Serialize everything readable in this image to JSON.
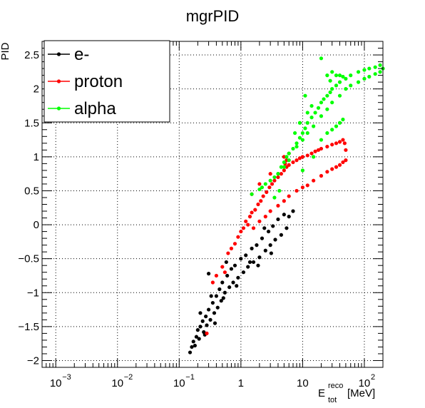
{
  "chart_data": {
    "type": "scatter",
    "title": "mgrPID",
    "ylabel": "PID",
    "xlabel": {
      "base": "E",
      "sup": "reco",
      "sub": "tot",
      "unit": "[MeV]"
    },
    "xscale": "log",
    "xlim": [
      0.0006,
      200
    ],
    "ylim": [
      -2.1,
      2.7
    ],
    "grid": true,
    "legend_position": "top-left",
    "x_ticks": [
      {
        "value": 0.001,
        "base": "10",
        "exp": "−3"
      },
      {
        "value": 0.01,
        "base": "10",
        "exp": "−2"
      },
      {
        "value": 0.1,
        "base": "10",
        "exp": "−1"
      },
      {
        "value": 1,
        "base": "1",
        "exp": ""
      },
      {
        "value": 10,
        "base": "10",
        "exp": ""
      },
      {
        "value": 100,
        "base": "10",
        "exp": "2"
      }
    ],
    "y_ticks": [
      {
        "value": -2,
        "label": "−2"
      },
      {
        "value": -1.5,
        "label": "−1.5"
      },
      {
        "value": -1,
        "label": "−1"
      },
      {
        "value": -0.5,
        "label": "−0.5"
      },
      {
        "value": 0,
        "label": "0"
      },
      {
        "value": 0.5,
        "label": "0.5"
      },
      {
        "value": 1,
        "label": "1"
      },
      {
        "value": 1.5,
        "label": "1.5"
      },
      {
        "value": 2,
        "label": "2"
      },
      {
        "value": 2.5,
        "label": "2.5"
      }
    ],
    "series": [
      {
        "name": "e-",
        "color": "#000000",
        "points": [
          [
            0.15,
            -1.88
          ],
          [
            0.16,
            -1.8
          ],
          [
            0.17,
            -1.72
          ],
          [
            0.18,
            -1.78
          ],
          [
            0.19,
            -1.65
          ],
          [
            0.2,
            -1.55
          ],
          [
            0.21,
            -1.68
          ],
          [
            0.22,
            -1.5
          ],
          [
            0.24,
            -1.42
          ],
          [
            0.25,
            -1.58
          ],
          [
            0.27,
            -1.35
          ],
          [
            0.28,
            -1.48
          ],
          [
            0.3,
            -1.25
          ],
          [
            0.32,
            -1.4
          ],
          [
            0.35,
            -1.15
          ],
          [
            0.37,
            -1.3
          ],
          [
            0.4,
            -1.05
          ],
          [
            0.42,
            -1.22
          ],
          [
            0.45,
            -0.95
          ],
          [
            0.48,
            -1.12
          ],
          [
            0.5,
            -0.85
          ],
          [
            0.55,
            -1.0
          ],
          [
            0.6,
            -0.75
          ],
          [
            0.65,
            -0.92
          ],
          [
            0.7,
            -0.65
          ],
          [
            0.75,
            -0.85
          ],
          [
            0.8,
            -0.6
          ],
          [
            0.9,
            -0.78
          ],
          [
            1.0,
            -0.5
          ],
          [
            1.1,
            -0.7
          ],
          [
            1.2,
            -0.45
          ],
          [
            1.3,
            -0.62
          ],
          [
            1.5,
            -0.35
          ],
          [
            1.6,
            -0.55
          ],
          [
            1.8,
            -0.3
          ],
          [
            2.0,
            -0.48
          ],
          [
            2.2,
            -0.2
          ],
          [
            2.5,
            -0.38
          ],
          [
            2.8,
            -0.1
          ],
          [
            3.0,
            -0.3
          ],
          [
            3.3,
            -0.02
          ],
          [
            3.6,
            -0.22
          ],
          [
            4.0,
            0.08
          ],
          [
            4.5,
            -0.15
          ],
          [
            5.0,
            0.15
          ],
          [
            5.5,
            -0.05
          ],
          [
            6.0,
            0.12
          ],
          [
            7.0,
            0.2
          ],
          [
            0.26,
            -1.62
          ],
          [
            0.33,
            -1.05
          ],
          [
            0.38,
            -1.45
          ],
          [
            0.52,
            -1.08
          ],
          [
            0.58,
            -0.55
          ],
          [
            0.85,
            -0.9
          ],
          [
            1.4,
            -0.55
          ],
          [
            1.9,
            -0.6
          ],
          [
            2.4,
            -0.05
          ],
          [
            3.1,
            -0.42
          ],
          [
            0.3,
            -0.72
          ],
          [
            0.22,
            -1.3
          ]
        ]
      },
      {
        "name": "proton",
        "color": "#ff0000",
        "points": [
          [
            0.28,
            -1.6
          ],
          [
            0.5,
            -0.62
          ],
          [
            0.55,
            -0.7
          ],
          [
            0.62,
            -0.42
          ],
          [
            0.7,
            -0.35
          ],
          [
            0.8,
            -0.28
          ],
          [
            0.9,
            -0.18
          ],
          [
            1.0,
            -0.1
          ],
          [
            1.1,
            -0.05
          ],
          [
            1.2,
            0.05
          ],
          [
            1.3,
            0.0
          ],
          [
            1.4,
            0.12
          ],
          [
            1.5,
            0.18
          ],
          [
            1.7,
            0.22
          ],
          [
            1.9,
            0.3
          ],
          [
            2.1,
            0.35
          ],
          [
            2.3,
            0.42
          ],
          [
            2.6,
            0.48
          ],
          [
            2.9,
            0.55
          ],
          [
            3.2,
            0.6
          ],
          [
            3.5,
            0.65
          ],
          [
            4.0,
            0.7
          ],
          [
            4.5,
            0.75
          ],
          [
            5.0,
            0.8
          ],
          [
            5.5,
            0.85
          ],
          [
            6.0,
            0.88
          ],
          [
            7.0,
            0.92
          ],
          [
            8.0,
            0.95
          ],
          [
            9.0,
            0.98
          ],
          [
            10.0,
            1.0
          ],
          [
            12.0,
            1.02
          ],
          [
            14.0,
            1.05
          ],
          [
            16.0,
            1.08
          ],
          [
            18.0,
            1.1
          ],
          [
            20.0,
            1.12
          ],
          [
            25.0,
            1.15
          ],
          [
            30.0,
            1.18
          ],
          [
            35.0,
            1.2
          ],
          [
            40.0,
            1.22
          ],
          [
            45.0,
            1.25
          ],
          [
            48.0,
            1.2
          ],
          [
            50.0,
            1.1
          ],
          [
            50.0,
            0.95
          ],
          [
            45.0,
            0.92
          ],
          [
            40.0,
            0.88
          ],
          [
            35.0,
            0.85
          ],
          [
            30.0,
            0.82
          ],
          [
            25.0,
            0.78
          ],
          [
            20.0,
            0.72
          ],
          [
            15.0,
            0.65
          ],
          [
            12.0,
            0.58
          ],
          [
            10.0,
            0.55
          ],
          [
            8.0,
            0.5
          ],
          [
            6.0,
            0.42
          ],
          [
            5.0,
            0.35
          ],
          [
            4.0,
            0.28
          ],
          [
            3.0,
            0.2
          ],
          [
            2.5,
            0.12
          ],
          [
            2.0,
            0.05
          ],
          [
            1.6,
            -0.05
          ],
          [
            5.0,
            1.0
          ],
          [
            5.5,
            0.95
          ],
          [
            6.0,
            1.05
          ],
          [
            5.2,
            0.9
          ],
          [
            0.4,
            -0.75
          ],
          [
            0.35,
            -0.85
          ],
          [
            2.0,
            0.6
          ],
          [
            3.0,
            0.75
          ],
          [
            1.5,
            0.45
          ]
        ]
      },
      {
        "name": "alpha",
        "color": "#00ff00",
        "points": [
          [
            2.5,
            0.6
          ],
          [
            3.0,
            0.65
          ],
          [
            3.5,
            0.7
          ],
          [
            4.0,
            0.75
          ],
          [
            4.5,
            0.85
          ],
          [
            5.0,
            0.92
          ],
          [
            5.5,
            1.0
          ],
          [
            6.0,
            1.05
          ],
          [
            7.0,
            1.12
          ],
          [
            8.0,
            1.2
          ],
          [
            9.0,
            1.28
          ],
          [
            10.0,
            1.35
          ],
          [
            11.0,
            1.42
          ],
          [
            12.0,
            1.5
          ],
          [
            14.0,
            1.58
          ],
          [
            16.0,
            1.65
          ],
          [
            18.0,
            1.72
          ],
          [
            20.0,
            1.8
          ],
          [
            22.0,
            1.85
          ],
          [
            25.0,
            1.9
          ],
          [
            28.0,
            1.95
          ],
          [
            30.0,
            2.0
          ],
          [
            35.0,
            2.05
          ],
          [
            40.0,
            2.1
          ],
          [
            50.0,
            2.15
          ],
          [
            60.0,
            2.2
          ],
          [
            80.0,
            2.25
          ],
          [
            100.0,
            2.28
          ],
          [
            120.0,
            2.3
          ],
          [
            150.0,
            2.32
          ],
          [
            180.0,
            2.35
          ],
          [
            200.0,
            2.3
          ],
          [
            180.0,
            2.25
          ],
          [
            150.0,
            2.22
          ],
          [
            120.0,
            2.18
          ],
          [
            100.0,
            2.15
          ],
          [
            80.0,
            2.1
          ],
          [
            60.0,
            2.05
          ],
          [
            50.0,
            2.0
          ],
          [
            40.0,
            1.9
          ],
          [
            30.0,
            1.8
          ],
          [
            25.0,
            1.7
          ],
          [
            20.0,
            1.6
          ],
          [
            15.0,
            1.45
          ],
          [
            12.0,
            1.35
          ],
          [
            10.0,
            1.25
          ],
          [
            8.0,
            1.15
          ],
          [
            6.0,
            0.95
          ],
          [
            5.0,
            0.85
          ],
          [
            4.0,
            0.75
          ],
          [
            20.0,
            2.45
          ],
          [
            30.0,
            2.25
          ],
          [
            40.0,
            2.2
          ],
          [
            35.0,
            2.2
          ],
          [
            25.0,
            2.2
          ],
          [
            28.0,
            2.12
          ],
          [
            45.0,
            2.18
          ],
          [
            12.0,
            1.65
          ],
          [
            11.0,
            1.9
          ],
          [
            14.0,
            1.75
          ],
          [
            9.0,
            1.5
          ],
          [
            7.5,
            1.35
          ],
          [
            2.2,
            0.55
          ],
          [
            1.5,
            0.45
          ],
          [
            2.0,
            0.52
          ],
          [
            10.0,
            0.8
          ],
          [
            15.0,
            1.0
          ],
          [
            3.5,
            0.4
          ],
          [
            4.2,
            0.5
          ],
          [
            25.0,
            1.35
          ],
          [
            30.0,
            1.4
          ],
          [
            35.0,
            1.45
          ],
          [
            40.0,
            1.5
          ],
          [
            45.0,
            1.55
          ],
          [
            20.0,
            1.25
          ]
        ]
      }
    ]
  }
}
